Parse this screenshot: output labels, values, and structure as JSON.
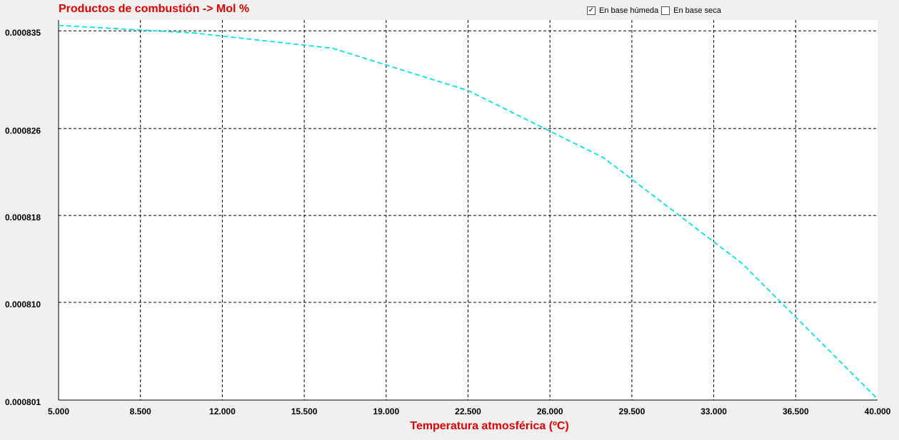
{
  "title": "Productos de combustión -> Mol %",
  "options": {
    "humid_label": "En base húmeda",
    "humid_checked": true,
    "dry_label": "En base seca",
    "dry_checked": false
  },
  "chart_data": {
    "type": "line",
    "title": "Productos de combustión -> Mol %",
    "xlabel": "Temperatura atmosférica (ºC)",
    "ylabel": "",
    "xlim": [
      5.0,
      40.0
    ],
    "ylim": [
      0.000801,
      0.000836
    ],
    "x_ticks": [
      "5.000",
      "8.500",
      "12.000",
      "15.500",
      "19.000",
      "22.500",
      "26.000",
      "29.500",
      "33.000",
      "36.500",
      "40.000"
    ],
    "y_ticks": [
      "0.000835",
      "0.000826",
      "0.000818",
      "0.000810",
      "0.000801"
    ],
    "grid": true,
    "series": [
      {
        "color": "#00e5e5",
        "x": [
          5.0,
          10.8,
          16.7,
          22.5,
          28.3,
          34.2,
          40.0
        ],
        "y": [
          0.0008355,
          0.0008348,
          0.0008334,
          0.0008295,
          0.0008233,
          0.0008136,
          0.0008011
        ]
      }
    ]
  }
}
